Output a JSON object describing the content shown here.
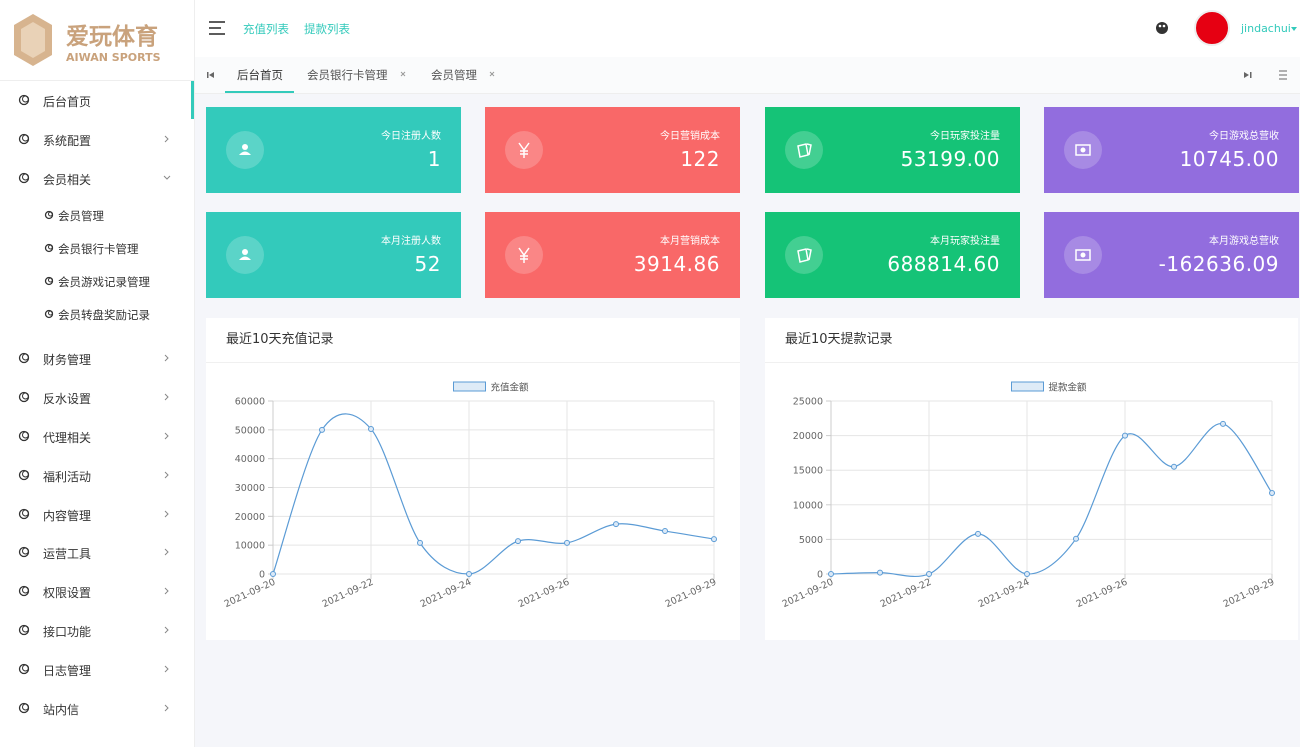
{
  "logo": {
    "title": "爱玩体育",
    "subtitle": "AIWAN SPORTS"
  },
  "topbar": {
    "links": [
      "充值列表",
      "提款列表"
    ],
    "user": "jindachui"
  },
  "tabs": [
    "后台首页",
    "会员银行卡管理",
    "会员管理"
  ],
  "sidebar": {
    "items": [
      {
        "label": "后台首页"
      },
      {
        "label": "系统配置"
      },
      {
        "label": "会员相关",
        "children": [
          "会员管理",
          "会员银行卡管理",
          "会员游戏记录管理",
          "会员转盘奖励记录"
        ]
      },
      {
        "label": "财务管理"
      },
      {
        "label": "反水设置"
      },
      {
        "label": "代理相关"
      },
      {
        "label": "福利活动"
      },
      {
        "label": "内容管理"
      },
      {
        "label": "运营工具"
      },
      {
        "label": "权限设置"
      },
      {
        "label": "接口功能"
      },
      {
        "label": "日志管理"
      },
      {
        "label": "站内信"
      }
    ]
  },
  "cards": [
    {
      "label": "今日注册人数",
      "value": "1"
    },
    {
      "label": "今日营销成本",
      "value": "122"
    },
    {
      "label": "今日玩家投注量",
      "value": "53199.00"
    },
    {
      "label": "今日游戏总营收",
      "value": "10745.00"
    },
    {
      "label": "本月注册人数",
      "value": "52"
    },
    {
      "label": "本月营销成本",
      "value": "3914.86"
    },
    {
      "label": "本月玩家投注量",
      "value": "688814.60"
    },
    {
      "label": "本月游戏总营收",
      "value": "-162636.09"
    }
  ],
  "chart_data": [
    {
      "type": "line",
      "title": "最近10天充值记录",
      "categories": [
        "2021-09-20",
        null,
        "2021-09-22",
        null,
        "2021-09-24",
        null,
        "2021-09-26",
        null,
        null,
        "2021-09-29"
      ],
      "series": [
        {
          "name": "充值金额",
          "color": "#5b9bd5",
          "values": [
            0,
            50000,
            50300,
            10800,
            0,
            11400,
            10800,
            17300,
            14900,
            12100
          ]
        }
      ],
      "ylim": [
        0,
        60000
      ],
      "yticks": [
        0,
        10000,
        20000,
        30000,
        40000,
        50000,
        60000
      ],
      "grid": true,
      "legend": "top"
    },
    {
      "type": "line",
      "title": "最近10天提款记录",
      "categories": [
        "2021-09-20",
        null,
        "2021-09-22",
        null,
        "2021-09-24",
        null,
        "2021-09-26",
        null,
        null,
        "2021-09-29"
      ],
      "series": [
        {
          "name": "提款金额",
          "color": "#5b9bd5",
          "values": [
            0,
            200,
            0,
            5800,
            0,
            5100,
            20000,
            15500,
            21700,
            11700
          ]
        }
      ],
      "ylim": [
        0,
        25000
      ],
      "yticks": [
        0,
        5000,
        10000,
        15000,
        20000,
        25000
      ],
      "grid": true,
      "legend": "top"
    }
  ]
}
